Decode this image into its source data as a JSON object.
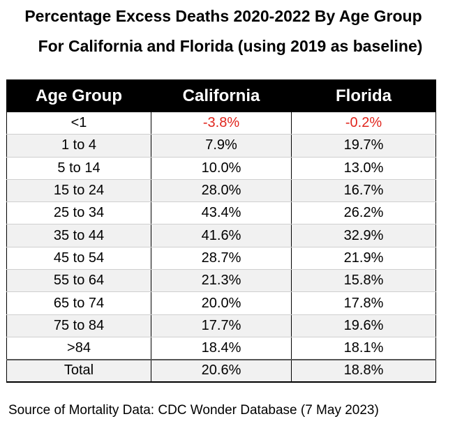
{
  "title_line1": "Percentage Excess Deaths 2020-2022 By Age Group",
  "title_line2": "For California and Florida (using 2019 as baseline)",
  "source": "Source of Mortality Data:  CDC Wonder Database (7 May 2023)",
  "colors": {
    "header_bg": "#000000",
    "header_text": "#ffffff",
    "negative_text": "#e0261e",
    "shaded_row": "#f1f1f1"
  },
  "chart_data": {
    "type": "table",
    "columns": [
      "Age Group",
      "California",
      "Florida"
    ],
    "rows": [
      [
        "<1",
        "-3.8%",
        "-0.2%"
      ],
      [
        "1 to 4",
        "7.9%",
        "19.7%"
      ],
      [
        "5 to 14",
        "10.0%",
        "13.0%"
      ],
      [
        "15 to 24",
        "28.0%",
        "16.7%"
      ],
      [
        "25 to 34",
        "43.4%",
        "26.2%"
      ],
      [
        "35 to 44",
        "41.6%",
        "32.9%"
      ],
      [
        "45 to 54",
        "28.7%",
        "21.9%"
      ],
      [
        "55 to 64",
        "21.3%",
        "15.8%"
      ],
      [
        "65 to 74",
        "20.0%",
        "17.8%"
      ],
      [
        "75 to 84",
        "17.7%",
        "19.6%"
      ],
      [
        ">84",
        "18.4%",
        "18.1%"
      ]
    ],
    "total": [
      "Total",
      "20.6%",
      "18.8%"
    ]
  }
}
